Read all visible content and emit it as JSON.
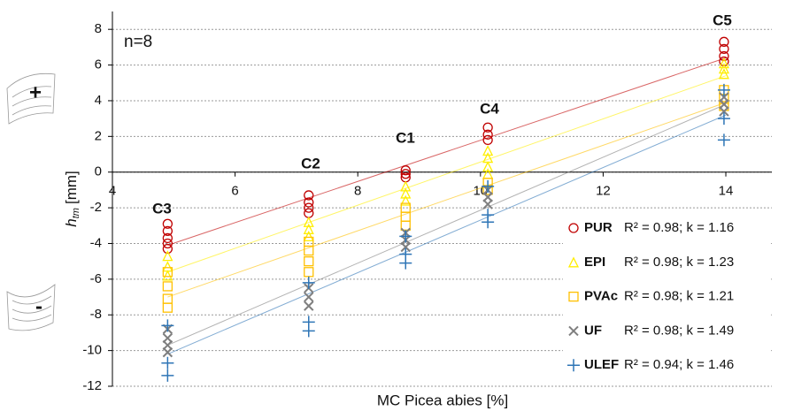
{
  "chart_data": {
    "type": "scatter",
    "annotation": "n=8",
    "x_label": "MC Picea abies [%]",
    "y_label": {
      "main": "h",
      "sub": "tm",
      "unit": "[mm]"
    },
    "signs": [
      "+",
      "-"
    ],
    "cluster_labels": [
      "C3",
      "C2",
      "C1",
      "C4",
      "C5"
    ],
    "xlim": [
      4,
      14.75
    ],
    "ylim": [
      -12,
      9
    ],
    "xticks": [
      4,
      6,
      8,
      10,
      12,
      14
    ],
    "yticks": [
      -12,
      -10,
      -8,
      -6,
      -4,
      -2,
      0,
      2,
      4,
      6,
      8
    ],
    "grid": true,
    "series": [
      {
        "name": "PUR",
        "stat": "R² = 0.98; k = 1.16",
        "color": "#c00000",
        "marker": "circle",
        "x": [
          4.9,
          4.9,
          4.9,
          4.9,
          4.9,
          7.2,
          7.2,
          7.2,
          7.2,
          8.78,
          8.78,
          8.78,
          10.12,
          10.12,
          10.12,
          13.97,
          13.97,
          13.97,
          13.97
        ],
        "values": [
          -2.9,
          -3.3,
          -3.7,
          -4.0,
          -4.3,
          -1.3,
          -1.7,
          -2.0,
          -2.3,
          0.1,
          -0.1,
          -0.3,
          2.5,
          2.1,
          1.8,
          7.3,
          6.9,
          6.5,
          6.2
        ],
        "trendline": {
          "x": [
            4.9,
            14
          ],
          "y": [
            -4.1,
            6.4
          ]
        }
      },
      {
        "name": "EPI",
        "stat": "R² = 0.98; k = 1.23",
        "color": "#ffee00",
        "marker": "triangle",
        "x": [
          4.9,
          4.9,
          4.9,
          7.2,
          7.2,
          7.2,
          8.78,
          8.78,
          8.78,
          10.12,
          10.12,
          10.12,
          10.12,
          13.97,
          13.97,
          13.97
        ],
        "values": [
          -4.7,
          -5.3,
          -5.8,
          -2.8,
          -3.2,
          -3.6,
          -0.8,
          -1.2,
          -1.6,
          1.2,
          0.8,
          0.3,
          -0.1,
          6.1,
          5.8,
          5.5
        ],
        "trendline": {
          "x": [
            4.9,
            14
          ],
          "y": [
            -5.6,
            5.4
          ]
        }
      },
      {
        "name": "PVAc",
        "stat": "R² = 0.98; k = 1.21",
        "color": "#ffc000",
        "marker": "square",
        "x": [
          4.9,
          4.9,
          4.9,
          4.9,
          7.2,
          7.2,
          7.2,
          7.2,
          8.78,
          8.78,
          8.78,
          10.12,
          10.12,
          13.97,
          13.97,
          13.97
        ],
        "values": [
          -5.6,
          -6.4,
          -7.1,
          -7.6,
          -3.9,
          -4.4,
          -5.0,
          -5.6,
          -2.0,
          -2.5,
          -3.0,
          -0.6,
          -1.0,
          4.6,
          4.1,
          3.7
        ],
        "trendline": {
          "x": [
            4.9,
            14
          ],
          "y": [
            -7.0,
            3.9
          ]
        }
      },
      {
        "name": "UF",
        "stat": "R² = 0.98; k = 1.49",
        "color": "#7f7f7f",
        "marker": "x",
        "x": [
          4.9,
          4.9,
          4.9,
          4.9,
          7.2,
          7.2,
          7.2,
          8.78,
          8.78,
          8.78,
          10.12,
          10.12,
          10.12,
          13.97,
          13.97,
          13.97
        ],
        "values": [
          -8.8,
          -9.3,
          -9.7,
          -10.1,
          -6.5,
          -7.0,
          -7.5,
          -3.4,
          -3.8,
          -4.2,
          -1.0,
          -1.4,
          -1.8,
          4.2,
          3.8,
          3.4
        ],
        "trendline": {
          "x": [
            4.9,
            14
          ],
          "y": [
            -9.7,
            3.8
          ]
        }
      },
      {
        "name": "ULEF",
        "stat": "R² = 0.94; k = 1.46",
        "color": "#2e75b6",
        "marker": "plus",
        "x": [
          4.9,
          4.9,
          4.9,
          7.2,
          7.2,
          7.2,
          8.78,
          8.78,
          8.78,
          10.12,
          10.12,
          10.12,
          13.97,
          13.97,
          13.97
        ],
        "values": [
          -8.6,
          -10.7,
          -11.4,
          -6.2,
          -8.4,
          -8.9,
          -3.6,
          -4.6,
          -5.1,
          -0.8,
          -2.4,
          -2.8,
          4.6,
          3.0,
          1.8
        ],
        "trendline": {
          "x": [
            4.9,
            14
          ],
          "y": [
            -10.2,
            3.2
          ]
        }
      }
    ]
  }
}
